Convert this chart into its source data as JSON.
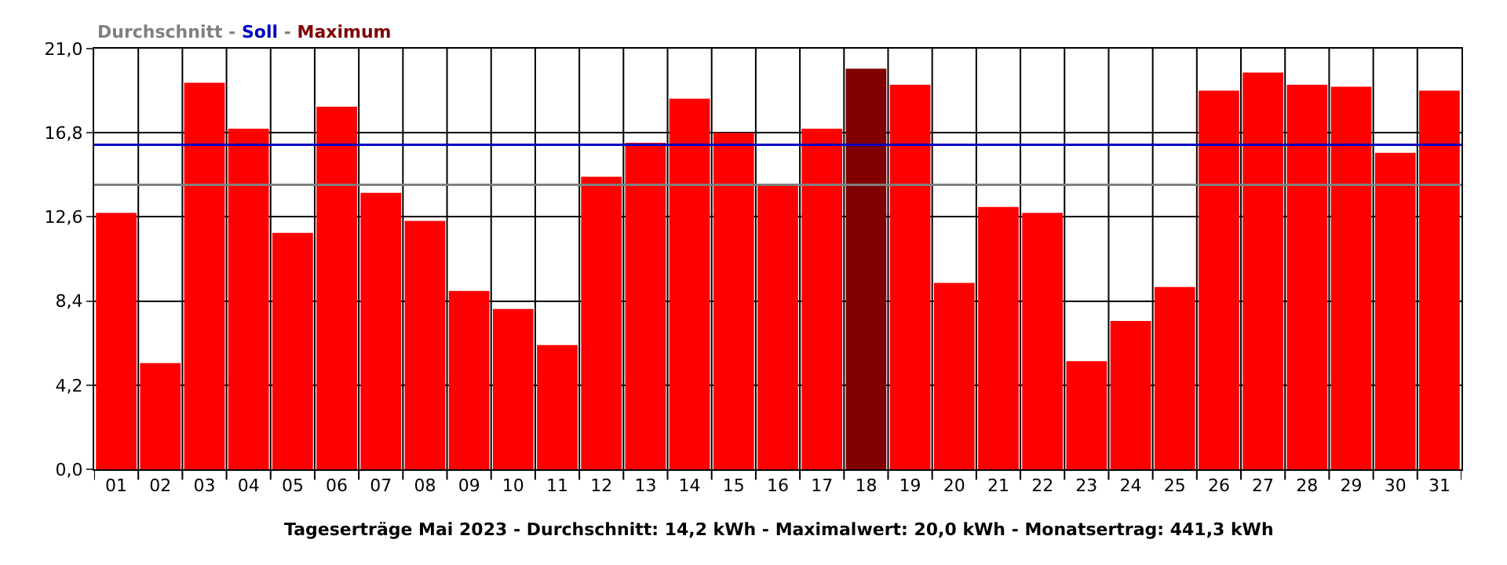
{
  "chart_data": {
    "type": "bar",
    "stacked": true,
    "categories": [
      "01",
      "02",
      "03",
      "04",
      "05",
      "06",
      "07",
      "08",
      "09",
      "10",
      "11",
      "12",
      "13",
      "14",
      "15",
      "16",
      "17",
      "18",
      "19",
      "20",
      "21",
      "22",
      "23",
      "24",
      "25",
      "26",
      "27",
      "28",
      "29",
      "30",
      "31"
    ],
    "series": [
      {
        "color": "#ff0000",
        "values": [
          12.8,
          5.3,
          19.3,
          17.0,
          11.8,
          18.1,
          13.8,
          12.4,
          8.9,
          8.0,
          6.2,
          14.6,
          16.3,
          18.5,
          16.8,
          14.2,
          17.0,
          null,
          19.2,
          9.3,
          13.1,
          12.8,
          5.4,
          7.4,
          9.1,
          18.9,
          19.8,
          19.2,
          19.1,
          15.8,
          18.9
        ]
      },
      {
        "color": "#800000",
        "values": [
          null,
          null,
          null,
          null,
          null,
          null,
          null,
          null,
          null,
          null,
          null,
          null,
          null,
          null,
          null,
          null,
          null,
          20.0,
          null,
          null,
          null,
          null,
          null,
          null,
          null,
          null,
          null,
          null,
          null,
          null,
          null
        ]
      }
    ],
    "ylim": [
      0,
      21
    ],
    "yticks": [
      {
        "value": 0,
        "label": "0,0"
      },
      {
        "value": 4.2,
        "label": "4,2"
      },
      {
        "value": 8.4,
        "label": "8,4"
      },
      {
        "value": 12.6,
        "label": "12,6"
      },
      {
        "value": 16.8,
        "label": "16,8"
      },
      {
        "value": 21,
        "label": "21,0"
      }
    ],
    "grid": true,
    "ref_lines": [
      {
        "axis": "y",
        "value": 14.2,
        "color": "#808080"
      },
      {
        "axis": "y",
        "value": 16.2,
        "color": "#0000c0"
      }
    ],
    "annotations": [
      "Durchschnitt - Soll - Maximum",
      "Tageserträge Mai 2023 - Durchschnitt: 14,2 kWh - Maximalwert: 20,0 kWh - Monatsertrag: 441,3 kWh"
    ]
  }
}
